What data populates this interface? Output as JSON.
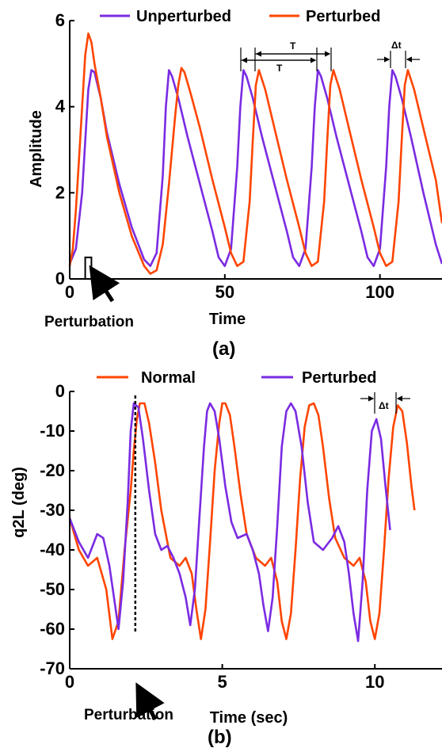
{
  "chart_data": [
    {
      "type": "line",
      "panel_label": "(a)",
      "xlabel": "Time",
      "ylabel": "Amplitude",
      "xlim": [
        0,
        120
      ],
      "ylim": [
        0,
        6
      ],
      "xticks": [
        0,
        50,
        100
      ],
      "yticks": [
        0,
        2,
        4,
        6
      ],
      "legend_position": "top",
      "series": [
        {
          "name": "Unperturbed",
          "color": "#7a2be2",
          "x": [
            0,
            2,
            4,
            5,
            6,
            7,
            8,
            10,
            12,
            16,
            20,
            24,
            26,
            28,
            30,
            31,
            32,
            33,
            35,
            38,
            42,
            46,
            48,
            50,
            52,
            54,
            55,
            56,
            57,
            59,
            62,
            66,
            70,
            72,
            74,
            76,
            78,
            79,
            80,
            81,
            83,
            86,
            90,
            94,
            96,
            98,
            100,
            102,
            103,
            104,
            105,
            107,
            110,
            114,
            118,
            120
          ],
          "y": [
            0.35,
            0.7,
            2.0,
            3.2,
            4.4,
            4.85,
            4.8,
            4.2,
            3.4,
            2.2,
            1.2,
            0.45,
            0.3,
            0.6,
            2.4,
            4.0,
            4.85,
            4.7,
            4.2,
            3.3,
            2.2,
            1.1,
            0.5,
            0.3,
            0.7,
            2.6,
            4.0,
            4.85,
            4.7,
            4.2,
            3.3,
            2.2,
            1.1,
            0.5,
            0.3,
            0.7,
            2.6,
            4.0,
            4.85,
            4.7,
            4.2,
            3.3,
            2.2,
            1.1,
            0.5,
            0.3,
            0.7,
            2.6,
            4.0,
            4.85,
            4.7,
            4.2,
            3.3,
            2.0,
            0.8,
            0.35
          ]
        },
        {
          "name": "Perturbed",
          "color": "#ff4500",
          "x": [
            0,
            1,
            2,
            3,
            4,
            5,
            6,
            7,
            8,
            10,
            12,
            16,
            20,
            24,
            26,
            28,
            30,
            32,
            34,
            35,
            36,
            37,
            39,
            42,
            46,
            50,
            52,
            54,
            56,
            58,
            59,
            60,
            61,
            63,
            66,
            70,
            74,
            76,
            78,
            80,
            82,
            83,
            84,
            85,
            87,
            90,
            94,
            98,
            100,
            102,
            104,
            106,
            107,
            108,
            109,
            111,
            114,
            118,
            120
          ],
          "y": [
            0.3,
            0.7,
            1.6,
            2.8,
            4.0,
            5.2,
            5.7,
            5.5,
            5.0,
            4.2,
            3.3,
            2.0,
            1.0,
            0.3,
            0.12,
            0.2,
            0.8,
            2.2,
            3.8,
            4.5,
            4.9,
            4.8,
            4.3,
            3.5,
            2.3,
            1.2,
            0.6,
            0.3,
            0.4,
            1.8,
            3.2,
            4.5,
            4.85,
            4.4,
            3.5,
            2.3,
            1.2,
            0.6,
            0.3,
            0.4,
            1.8,
            3.2,
            4.5,
            4.85,
            4.4,
            3.5,
            2.3,
            1.2,
            0.6,
            0.3,
            0.4,
            1.8,
            3.2,
            4.5,
            4.85,
            4.4,
            3.5,
            2.3,
            1.3
          ]
        }
      ],
      "annotations": [
        {
          "text": "Perturbation"
        },
        {
          "text": "T"
        },
        {
          "text": "T"
        },
        {
          "text": "Δt"
        }
      ],
      "perturbation_pulse": {
        "x_start": 5,
        "x_end": 7,
        "height": 0.5
      }
    },
    {
      "type": "line",
      "panel_label": "(b)",
      "xlabel": "Time (sec)",
      "ylabel": "q2L (deg)",
      "xlim": [
        0,
        12.2
      ],
      "ylim": [
        -70,
        0
      ],
      "xticks": [
        0,
        5,
        10
      ],
      "yticks": [
        0,
        -10,
        -20,
        -30,
        -40,
        -50,
        -60,
        -70
      ],
      "legend_position": "top",
      "series": [
        {
          "name": "Normal",
          "color": "#ff4500",
          "x": [
            0,
            0.3,
            0.6,
            0.9,
            1.2,
            1.4,
            1.6,
            1.8,
            2.0,
            2.1,
            2.2,
            2.3,
            2.45,
            2.6,
            2.8,
            3.0,
            3.3,
            3.6,
            3.8,
            4.0,
            4.15,
            4.3,
            4.45,
            4.6,
            4.75,
            4.9,
            5.0,
            5.1,
            5.25,
            5.4,
            5.6,
            5.8,
            6.1,
            6.4,
            6.6,
            6.8,
            6.95,
            7.1,
            7.25,
            7.4,
            7.55,
            7.7,
            7.85,
            8.0,
            8.15,
            8.3,
            8.5,
            8.7,
            9.0,
            9.3,
            9.5,
            9.7,
            9.85,
            10.0,
            10.15,
            10.3,
            10.45,
            10.6,
            10.75,
            10.9,
            11.05,
            11.2,
            11.3
          ],
          "y": [
            -32,
            -40,
            -44,
            -42,
            -50,
            -62.5,
            -58,
            -40,
            -25,
            -15,
            -7,
            -3,
            -3,
            -8,
            -18,
            -30,
            -42,
            -44,
            -42,
            -46,
            -55,
            -62.5,
            -55,
            -38,
            -20,
            -8,
            -3,
            -3,
            -6,
            -14,
            -26,
            -36,
            -42,
            -44,
            -42,
            -48,
            -58,
            -62.5,
            -56,
            -40,
            -22,
            -9,
            -3.5,
            -3,
            -6,
            -14,
            -27,
            -37,
            -42,
            -44,
            -42,
            -48,
            -58,
            -62.5,
            -56,
            -40,
            -22,
            -9,
            -3.5,
            -5,
            -13,
            -24,
            -30
          ]
        },
        {
          "name": "Perturbed",
          "color": "#7a2be2",
          "x": [
            0,
            0.3,
            0.6,
            0.9,
            1.1,
            1.3,
            1.45,
            1.6,
            1.75,
            1.9,
            2.0,
            2.1,
            2.25,
            2.4,
            2.6,
            2.8,
            3.0,
            3.2,
            3.4,
            3.6,
            3.8,
            3.95,
            4.1,
            4.25,
            4.4,
            4.5,
            4.6,
            4.75,
            4.9,
            5.1,
            5.3,
            5.5,
            5.8,
            6.0,
            6.2,
            6.35,
            6.5,
            6.65,
            6.8,
            6.95,
            7.1,
            7.25,
            7.4,
            7.6,
            7.8,
            8.0,
            8.3,
            8.6,
            8.8,
            9.0,
            9.15,
            9.3,
            9.45,
            9.6,
            9.75,
            9.9,
            10.05,
            10.2,
            10.35,
            10.5
          ],
          "y": [
            -32,
            -38,
            -42,
            -36,
            -37,
            -44,
            -52,
            -60,
            -48,
            -28,
            -10,
            -3,
            -4,
            -12,
            -25,
            -36,
            -40,
            -39,
            -42,
            -46,
            -52,
            -59,
            -50,
            -32,
            -14,
            -5,
            -3,
            -5,
            -12,
            -24,
            -33,
            -37,
            -36,
            -40,
            -46,
            -54,
            -60.5,
            -52,
            -34,
            -14,
            -5,
            -3,
            -5,
            -14,
            -28,
            -38,
            -40,
            -37,
            -34,
            -38,
            -46,
            -56,
            -63,
            -48,
            -25,
            -10,
            -7,
            -12,
            -24,
            -35
          ]
        }
      ],
      "annotations": [
        {
          "text": "Perturbation"
        },
        {
          "text": "Δt"
        }
      ],
      "perturbation_time": 2.15
    }
  ]
}
